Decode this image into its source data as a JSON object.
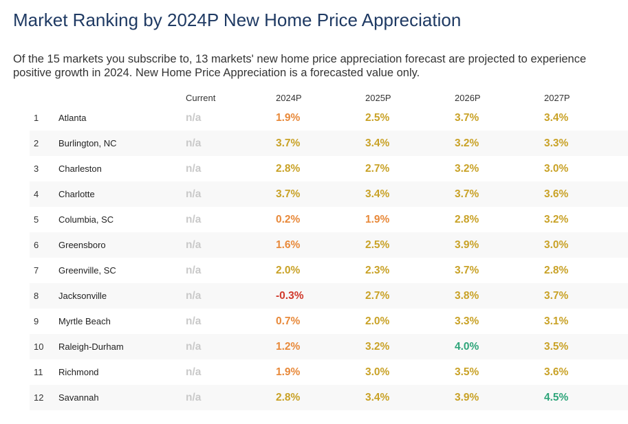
{
  "title": "Market Ranking by 2024P New Home Price Appreciation",
  "description": "Of the 15 markets you subscribe to, 13 markets' new home price appreciation forecast are projected to experience positive growth in 2024. New Home Price Appreciation is a forecasted value only.",
  "colors": {
    "title": "#1f3a63",
    "na": "#c9c9c9",
    "negative": "#d0392b",
    "low": "#e8893a",
    "mid": "#c9a227",
    "high": "#2fa57a"
  },
  "columns": {
    "current": "Current",
    "y2024": "2024P",
    "y2025": "2025P",
    "y2026": "2026P",
    "y2027": "2027P"
  },
  "rows": [
    {
      "rank": "1",
      "market": "Atlanta",
      "current": "n/a",
      "y2024": "1.9%",
      "y2025": "2.5%",
      "y2026": "3.7%",
      "y2027": "3.4%"
    },
    {
      "rank": "2",
      "market": "Burlington, NC",
      "current": "n/a",
      "y2024": "3.7%",
      "y2025": "3.4%",
      "y2026": "3.2%",
      "y2027": "3.3%"
    },
    {
      "rank": "3",
      "market": "Charleston",
      "current": "n/a",
      "y2024": "2.8%",
      "y2025": "2.7%",
      "y2026": "3.2%",
      "y2027": "3.0%"
    },
    {
      "rank": "4",
      "market": "Charlotte",
      "current": "n/a",
      "y2024": "3.7%",
      "y2025": "3.4%",
      "y2026": "3.7%",
      "y2027": "3.6%"
    },
    {
      "rank": "5",
      "market": "Columbia, SC",
      "current": "n/a",
      "y2024": "0.2%",
      "y2025": "1.9%",
      "y2026": "2.8%",
      "y2027": "3.2%"
    },
    {
      "rank": "6",
      "market": "Greensboro",
      "current": "n/a",
      "y2024": "1.6%",
      "y2025": "2.5%",
      "y2026": "3.9%",
      "y2027": "3.0%"
    },
    {
      "rank": "7",
      "market": "Greenville, SC",
      "current": "n/a",
      "y2024": "2.0%",
      "y2025": "2.3%",
      "y2026": "3.7%",
      "y2027": "2.8%"
    },
    {
      "rank": "8",
      "market": "Jacksonville",
      "current": "n/a",
      "y2024": "-0.3%",
      "y2025": "2.7%",
      "y2026": "3.8%",
      "y2027": "3.7%"
    },
    {
      "rank": "9",
      "market": "Myrtle Beach",
      "current": "n/a",
      "y2024": "0.7%",
      "y2025": "2.0%",
      "y2026": "3.3%",
      "y2027": "3.1%"
    },
    {
      "rank": "10",
      "market": "Raleigh-Durham",
      "current": "n/a",
      "y2024": "1.2%",
      "y2025": "3.2%",
      "y2026": "4.0%",
      "y2027": "3.5%"
    },
    {
      "rank": "11",
      "market": "Richmond",
      "current": "n/a",
      "y2024": "1.9%",
      "y2025": "3.0%",
      "y2026": "3.5%",
      "y2027": "3.6%"
    },
    {
      "rank": "12",
      "market": "Savannah",
      "current": "n/a",
      "y2024": "2.8%",
      "y2025": "3.4%",
      "y2026": "3.9%",
      "y2027": "4.5%"
    }
  ]
}
